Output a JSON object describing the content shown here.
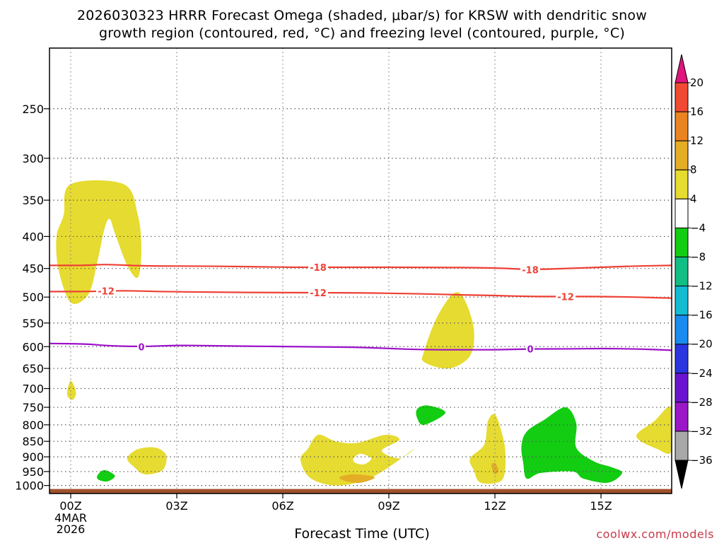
{
  "chart_data": {
    "type": "heatmap",
    "title": "2026030323 HRRR Forecast Omega (shaded, μbar/s) for KRSW with dendritic snow\ngrowth region (contoured, red, °C) and freezing level (contoured, purple, °C)",
    "xlabel": "Forecast Time (UTC)",
    "ylabel": "",
    "x_ticks": [
      {
        "hour": 0,
        "label": "00Z",
        "sub": [
          "4MAR",
          "2026"
        ]
      },
      {
        "hour": 3,
        "label": "03Z"
      },
      {
        "hour": 6,
        "label": "06Z"
      },
      {
        "hour": 9,
        "label": "09Z"
      },
      {
        "hour": 12,
        "label": "12Z"
      },
      {
        "hour": 15,
        "label": "15Z"
      }
    ],
    "xlim": [
      -0.6,
      17
    ],
    "y_ticks": [
      250,
      300,
      350,
      400,
      450,
      500,
      550,
      600,
      650,
      700,
      750,
      800,
      850,
      900,
      950,
      1000
    ],
    "ylim": [
      200,
      1030
    ],
    "y_scale": "pressure (hPa), log",
    "grid": true,
    "ground_level_hpa": 1013,
    "colorbar": {
      "levels": [
        -36,
        -32,
        -28,
        -24,
        -20,
        -16,
        -12,
        -8,
        -4,
        4,
        8,
        12,
        16,
        20
      ],
      "colors": [
        "#a8a8a8",
        "#9a18c8",
        "#6a14d2",
        "#2a36e0",
        "#1a8cf0",
        "#14bcd2",
        "#12be84",
        "#12cd12",
        "#ffffff",
        "#e6db30",
        "#e3ad25",
        "#ea8322",
        "#f04a32",
        "#e0157d"
      ],
      "under_color": "#000000",
      "over_color": "#e0157d"
    },
    "omega_regions": [
      {
        "value": 5,
        "points": [
          [
            0,
            330
          ],
          [
            1.5,
            330
          ],
          [
            1.9,
            370
          ],
          [
            2.0,
            420
          ],
          [
            1.9,
            465
          ],
          [
            1.6,
            445
          ],
          [
            1.25,
            395
          ],
          [
            1.1,
            375
          ],
          [
            0.95,
            390
          ],
          [
            0.75,
            440
          ],
          [
            0.5,
            495
          ],
          [
            0.0,
            510
          ],
          [
            -0.35,
            450
          ],
          [
            -0.4,
            400
          ],
          [
            -0.2,
            370
          ]
        ]
      },
      {
        "value": 5,
        "points": [
          [
            10.0,
            610
          ],
          [
            10.35,
            540
          ],
          [
            10.8,
            495
          ],
          [
            11.1,
            500
          ],
          [
            11.4,
            560
          ],
          [
            11.3,
            620
          ],
          [
            10.7,
            650
          ],
          [
            10.0,
            635
          ]
        ]
      },
      {
        "value": 5,
        "points": [
          [
            -0.1,
            715
          ],
          [
            0.0,
            680
          ],
          [
            0.15,
            710
          ],
          [
            0.05,
            730
          ]
        ]
      },
      {
        "value": 5,
        "points": [
          [
            1.6,
            905
          ],
          [
            1.9,
            875
          ],
          [
            2.4,
            870
          ],
          [
            2.7,
            895
          ],
          [
            2.6,
            945
          ],
          [
            2.1,
            960
          ],
          [
            1.8,
            935
          ]
        ]
      },
      {
        "value": 5,
        "points": [
          [
            6.7,
            875
          ],
          [
            7.0,
            830
          ],
          [
            7.5,
            850
          ],
          [
            8.1,
            855
          ],
          [
            8.9,
            830
          ],
          [
            9.3,
            845
          ],
          [
            8.8,
            880
          ],
          [
            9.3,
            905
          ],
          [
            9.7,
            875
          ],
          [
            8.6,
            965
          ],
          [
            7.6,
            1000
          ],
          [
            6.8,
            975
          ],
          [
            6.5,
            910
          ]
        ]
      },
      {
        "value": 5,
        "points": [
          [
            11.3,
            905
          ],
          [
            11.7,
            860
          ],
          [
            11.8,
            790
          ],
          [
            12.0,
            770
          ],
          [
            12.2,
            825
          ],
          [
            12.3,
            895
          ],
          [
            12.2,
            980
          ],
          [
            11.6,
            990
          ],
          [
            11.4,
            945
          ]
        ]
      },
      {
        "value": 5,
        "points": [
          [
            16.0,
            835
          ],
          [
            16.5,
            790
          ],
          [
            17.0,
            750
          ],
          [
            17.0,
            880
          ],
          [
            16.6,
            875
          ]
        ]
      },
      {
        "value": -6,
        "points": [
          [
            9.8,
            755
          ],
          [
            10.1,
            745
          ],
          [
            10.6,
            765
          ],
          [
            10.0,
            800
          ],
          [
            9.8,
            780
          ]
        ]
      },
      {
        "value": -6,
        "points": [
          [
            0.75,
            965
          ],
          [
            0.95,
            945
          ],
          [
            1.25,
            965
          ],
          [
            1.05,
            985
          ],
          [
            0.8,
            980
          ]
        ]
      },
      {
        "value": -6,
        "points": [
          [
            12.75,
            865
          ],
          [
            12.9,
            820
          ],
          [
            13.4,
            785
          ],
          [
            14.0,
            750
          ],
          [
            14.3,
            795
          ],
          [
            14.3,
            870
          ],
          [
            14.8,
            915
          ],
          [
            15.3,
            935
          ],
          [
            15.6,
            955
          ],
          [
            15.2,
            990
          ],
          [
            14.5,
            975
          ],
          [
            14.2,
            950
          ],
          [
            13.3,
            955
          ],
          [
            12.9,
            975
          ],
          [
            12.8,
            920
          ]
        ]
      },
      {
        "value": 10,
        "points": [
          [
            7.6,
            970
          ],
          [
            8.0,
            960
          ],
          [
            8.6,
            970
          ],
          [
            8.2,
            990
          ],
          [
            7.8,
            985
          ]
        ]
      },
      {
        "value": 10,
        "points": [
          [
            11.9,
            930
          ],
          [
            12.0,
            920
          ],
          [
            12.1,
            945
          ],
          [
            12.0,
            960
          ]
        ]
      },
      {
        "value": -2,
        "points": [
          [
            8.0,
            905
          ],
          [
            8.2,
            890
          ],
          [
            8.5,
            905
          ],
          [
            8.3,
            925
          ],
          [
            8.05,
            920
          ]
        ]
      }
    ],
    "contours": [
      {
        "level": -18,
        "color": "#ee4035",
        "label": "-18",
        "points": [
          [
            -0.6,
            445
          ],
          [
            0.5,
            445
          ],
          [
            1.0,
            443
          ],
          [
            2.0,
            446
          ],
          [
            4.0,
            446
          ],
          [
            6.0,
            448
          ],
          [
            8.0,
            448
          ],
          [
            10.0,
            448
          ],
          [
            12.0,
            449
          ],
          [
            13.0,
            452
          ],
          [
            14.0,
            450
          ],
          [
            15.0,
            448
          ],
          [
            16.0,
            446
          ],
          [
            17.0,
            445
          ]
        ],
        "label_x": [
          7.0,
          13.0
        ]
      },
      {
        "level": -12,
        "color": "#ee4035",
        "label": "-12",
        "points": [
          [
            -0.6,
            490
          ],
          [
            0.5,
            490
          ],
          [
            1.5,
            488
          ],
          [
            2.5,
            490
          ],
          [
            4.0,
            491
          ],
          [
            6.0,
            492
          ],
          [
            8.0,
            492
          ],
          [
            10.0,
            494
          ],
          [
            11.0,
            496
          ],
          [
            12.0,
            497
          ],
          [
            13.0,
            499
          ],
          [
            14.0,
            499
          ],
          [
            15.0,
            499
          ],
          [
            16.0,
            500
          ],
          [
            17.0,
            502
          ]
        ],
        "label_x": [
          1.0,
          7.0,
          14.0
        ]
      },
      {
        "level": 0,
        "color": "#9d10c9",
        "label": "0",
        "points": [
          [
            -0.6,
            593
          ],
          [
            0.5,
            594
          ],
          [
            1.0,
            598
          ],
          [
            2.0,
            600
          ],
          [
            3.0,
            597
          ],
          [
            4.0,
            598
          ],
          [
            6.0,
            600
          ],
          [
            8.0,
            601
          ],
          [
            9.0,
            604
          ],
          [
            10.0,
            607
          ],
          [
            11.0,
            607
          ],
          [
            12.0,
            607
          ],
          [
            13.0,
            605
          ],
          [
            14.0,
            605
          ],
          [
            15.0,
            604
          ],
          [
            16.0,
            605
          ],
          [
            17.0,
            608
          ]
        ],
        "label_x": [
          2.0,
          13.0
        ]
      }
    ]
  },
  "credit": "coolwx.com/models"
}
